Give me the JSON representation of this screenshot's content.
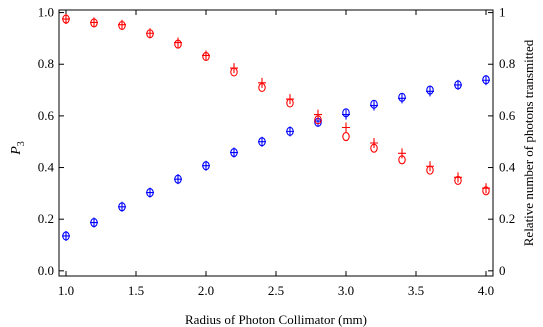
{
  "chart_data": {
    "type": "scatter",
    "title": "",
    "xlabel": "Radius of Photon Collimator (mm)",
    "ylabel_left": "P",
    "ylabel_left_subscript": "3",
    "ylabel_right": "Relative number of photons transmitted",
    "xlim": [
      0.95,
      4.05
    ],
    "ylim": [
      -0.02,
      1.01
    ],
    "x_ticks": [
      1.0,
      1.5,
      2.0,
      2.5,
      3.0,
      3.5,
      4.0
    ],
    "x_tick_labels": [
      "1.0",
      "1.5",
      "2.0",
      "2.5",
      "3.0",
      "3.5",
      "4.0"
    ],
    "y_left_ticks": [
      0.0,
      0.2,
      0.4,
      0.6,
      0.8,
      1.0
    ],
    "y_left_tick_labels": [
      "0.0",
      "0.2",
      "0.4",
      "0.6",
      "0.8",
      "1.0"
    ],
    "y_right_ticks": [
      0,
      0.2,
      0.4,
      0.6,
      0.8,
      1
    ],
    "y_right_tick_labels": [
      "0",
      "0.2",
      "0.4",
      "0.6",
      "0.8",
      "1"
    ],
    "grid": false,
    "legend": "none",
    "x": [
      1.0,
      1.2,
      1.4,
      1.6,
      1.8,
      2.0,
      2.2,
      2.4,
      2.6,
      2.8,
      3.0,
      3.2,
      3.4,
      3.6,
      3.8,
      4.0
    ],
    "series": [
      {
        "axis": "left",
        "color": "#0000ff",
        "circles": [
          0.135,
          0.187,
          0.248,
          0.303,
          0.355,
          0.407,
          0.458,
          0.5,
          0.54,
          0.575,
          0.612,
          0.645,
          0.672,
          0.7,
          0.72,
          0.74
        ],
        "crosses": [
          0.135,
          0.187,
          0.248,
          0.303,
          0.355,
          0.407,
          0.458,
          0.5,
          0.54,
          0.58,
          0.605,
          0.64,
          0.668,
          0.695,
          0.72,
          0.738
        ]
      },
      {
        "axis": "right",
        "color": "#ff0000",
        "circles": [
          0.975,
          0.96,
          0.95,
          0.918,
          0.878,
          0.83,
          0.77,
          0.71,
          0.65,
          0.585,
          0.52,
          0.475,
          0.43,
          0.39,
          0.35,
          0.31
        ],
        "crosses": [
          0.975,
          0.962,
          0.953,
          0.92,
          0.884,
          0.834,
          0.785,
          0.728,
          0.665,
          0.605,
          0.555,
          0.495,
          0.455,
          0.405,
          0.362,
          0.32
        ]
      }
    ]
  }
}
